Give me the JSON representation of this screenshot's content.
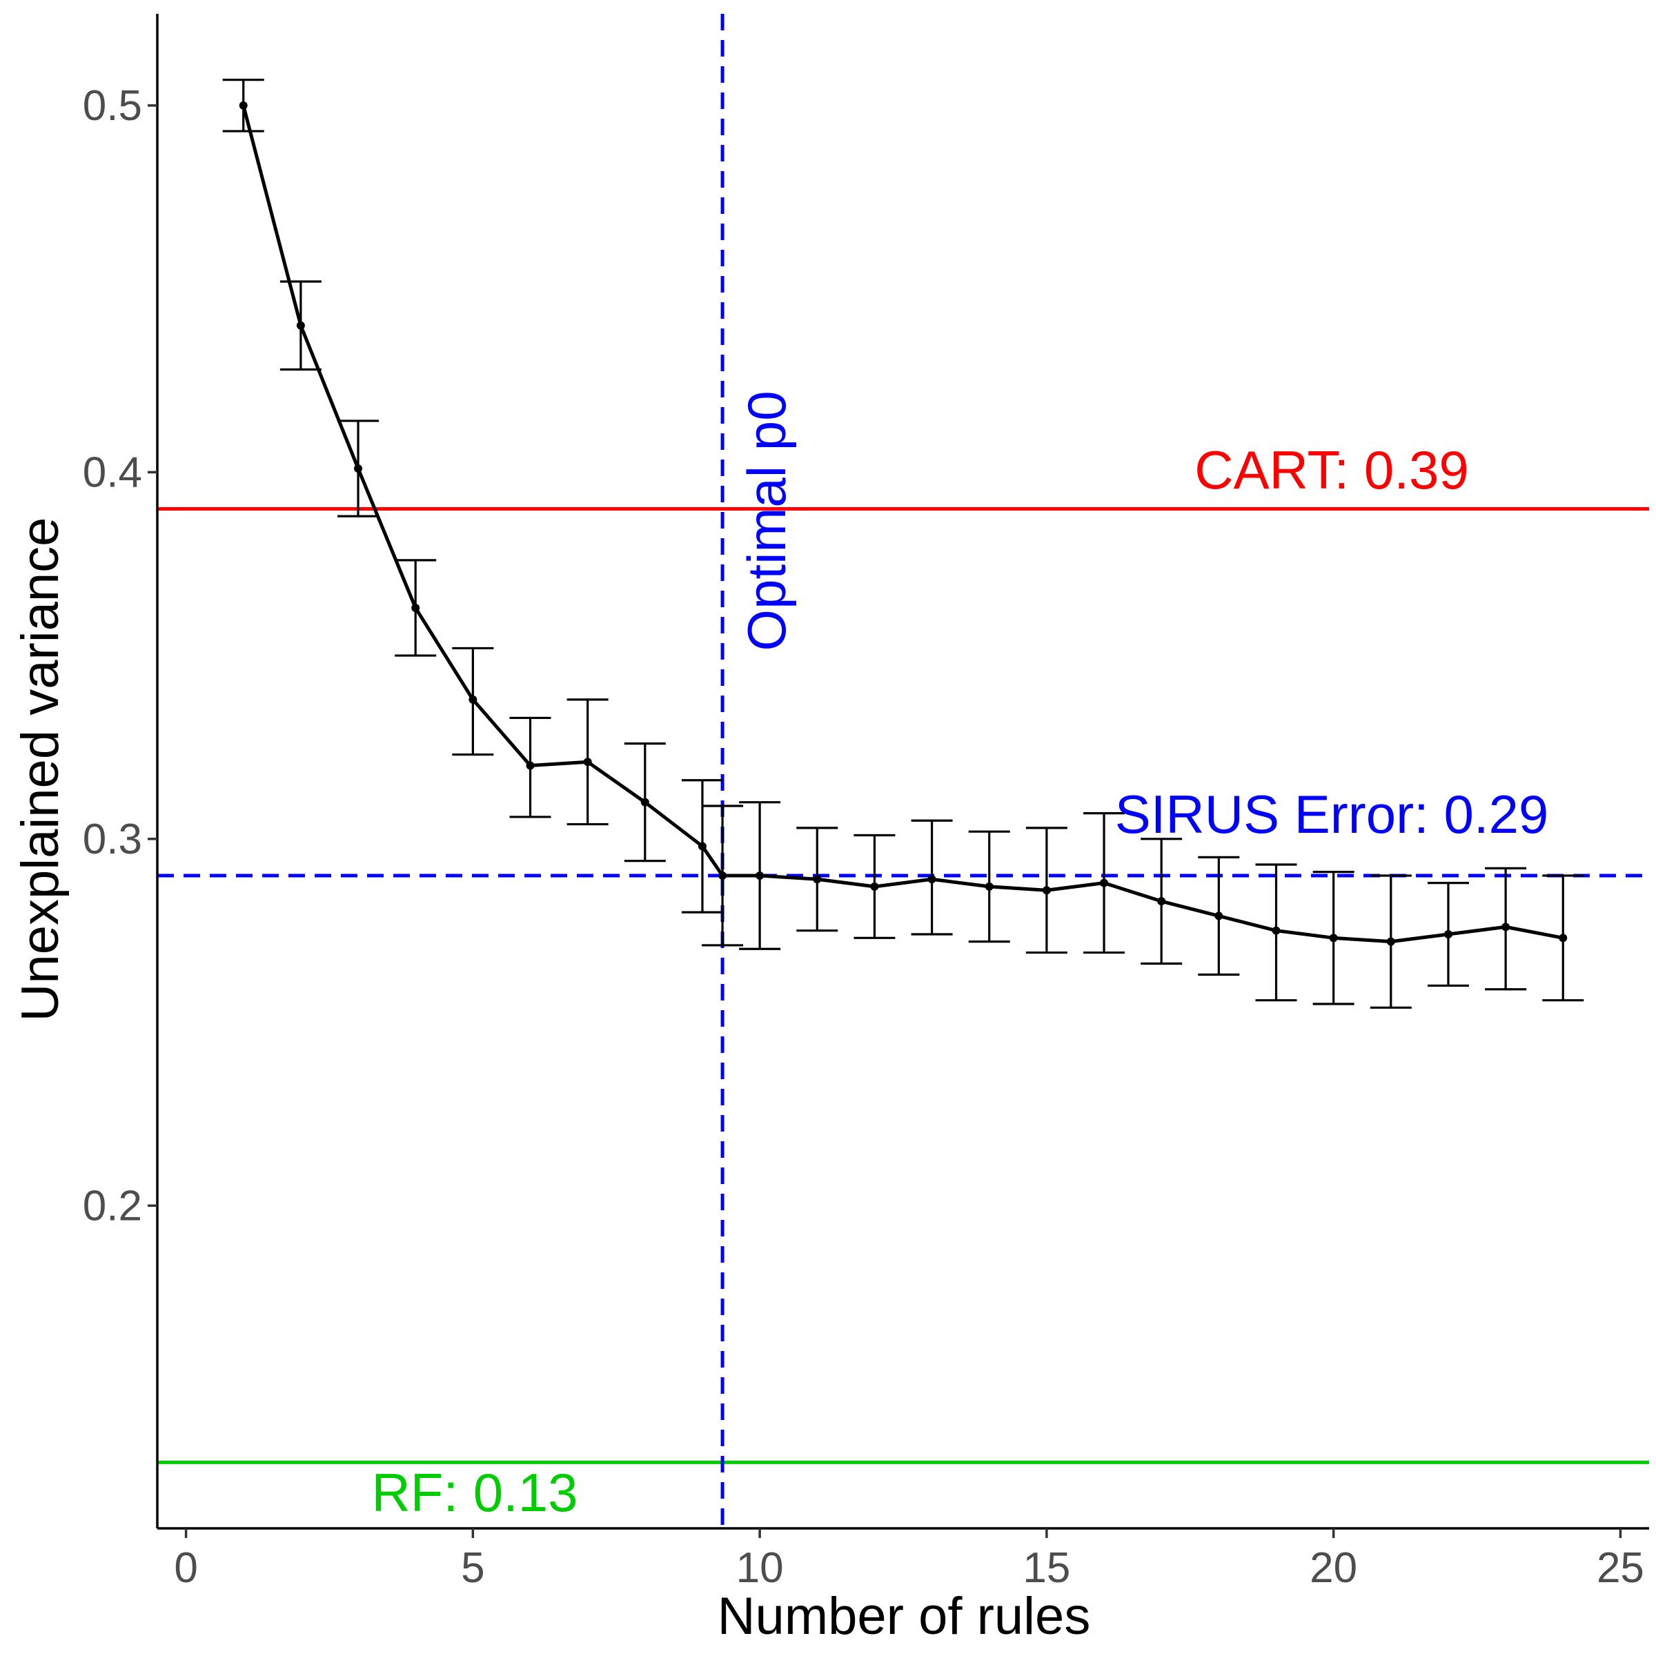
{
  "chart_data": {
    "type": "line",
    "title": "",
    "xlabel": "Number of rules",
    "ylabel": "Unexplained variance",
    "xlim": [
      -0.5,
      25.5
    ],
    "ylim": [
      0.112,
      0.525
    ],
    "xticks": [
      0,
      5,
      10,
      15,
      20,
      25
    ],
    "xtick_labels": [
      "0",
      "5",
      "10",
      "15",
      "20",
      "25"
    ],
    "yticks": [
      0.2,
      0.3,
      0.4,
      0.5
    ],
    "ytick_labels": [
      "0.2",
      "0.3",
      "0.4",
      "0.5"
    ],
    "grid": false,
    "series": [
      {
        "name": "SIRUS",
        "color": "#000000",
        "x": [
          1,
          2,
          3,
          4,
          5,
          6,
          7,
          8,
          9,
          9.35,
          10,
          11,
          12,
          13,
          14,
          15,
          16,
          17,
          18,
          19,
          20,
          21,
          22,
          23,
          24
        ],
        "y": [
          0.5,
          0.44,
          0.401,
          0.363,
          0.338,
          0.32,
          0.321,
          0.31,
          0.298,
          0.29,
          0.29,
          0.289,
          0.287,
          0.289,
          0.287,
          0.286,
          0.288,
          0.283,
          0.279,
          0.275,
          0.273,
          0.272,
          0.274,
          0.276,
          0.273
        ],
        "err_low": [
          0.493,
          0.428,
          0.388,
          0.35,
          0.323,
          0.306,
          0.304,
          0.294,
          0.28,
          0.271,
          0.27,
          0.275,
          0.273,
          0.274,
          0.272,
          0.269,
          0.269,
          0.266,
          0.263,
          0.256,
          0.255,
          0.254,
          0.26,
          0.259,
          0.256
        ],
        "err_high": [
          0.507,
          0.452,
          0.414,
          0.376,
          0.352,
          0.333,
          0.338,
          0.326,
          0.316,
          0.309,
          0.31,
          0.303,
          0.301,
          0.305,
          0.302,
          0.303,
          0.307,
          0.3,
          0.295,
          0.293,
          0.291,
          0.29,
          0.288,
          0.292,
          0.29
        ]
      }
    ],
    "reference_lines": [
      {
        "name": "CART",
        "orientation": "horizontal",
        "value": 0.39,
        "color": "#ff0000",
        "style": "solid",
        "label": "CART: 0.39"
      },
      {
        "name": "RF",
        "orientation": "horizontal",
        "value": 0.13,
        "color": "#00cd00",
        "style": "solid",
        "label": "RF: 0.13"
      },
      {
        "name": "SIRUS",
        "orientation": "horizontal",
        "value": 0.29,
        "color": "#0000ff",
        "style": "dashed",
        "label": "SIRUS Error: 0.29"
      },
      {
        "name": "Optimal p0",
        "orientation": "vertical",
        "value": 9.35,
        "color": "#0000ff",
        "style": "dashed",
        "label": "Optimal p0"
      }
    ]
  }
}
